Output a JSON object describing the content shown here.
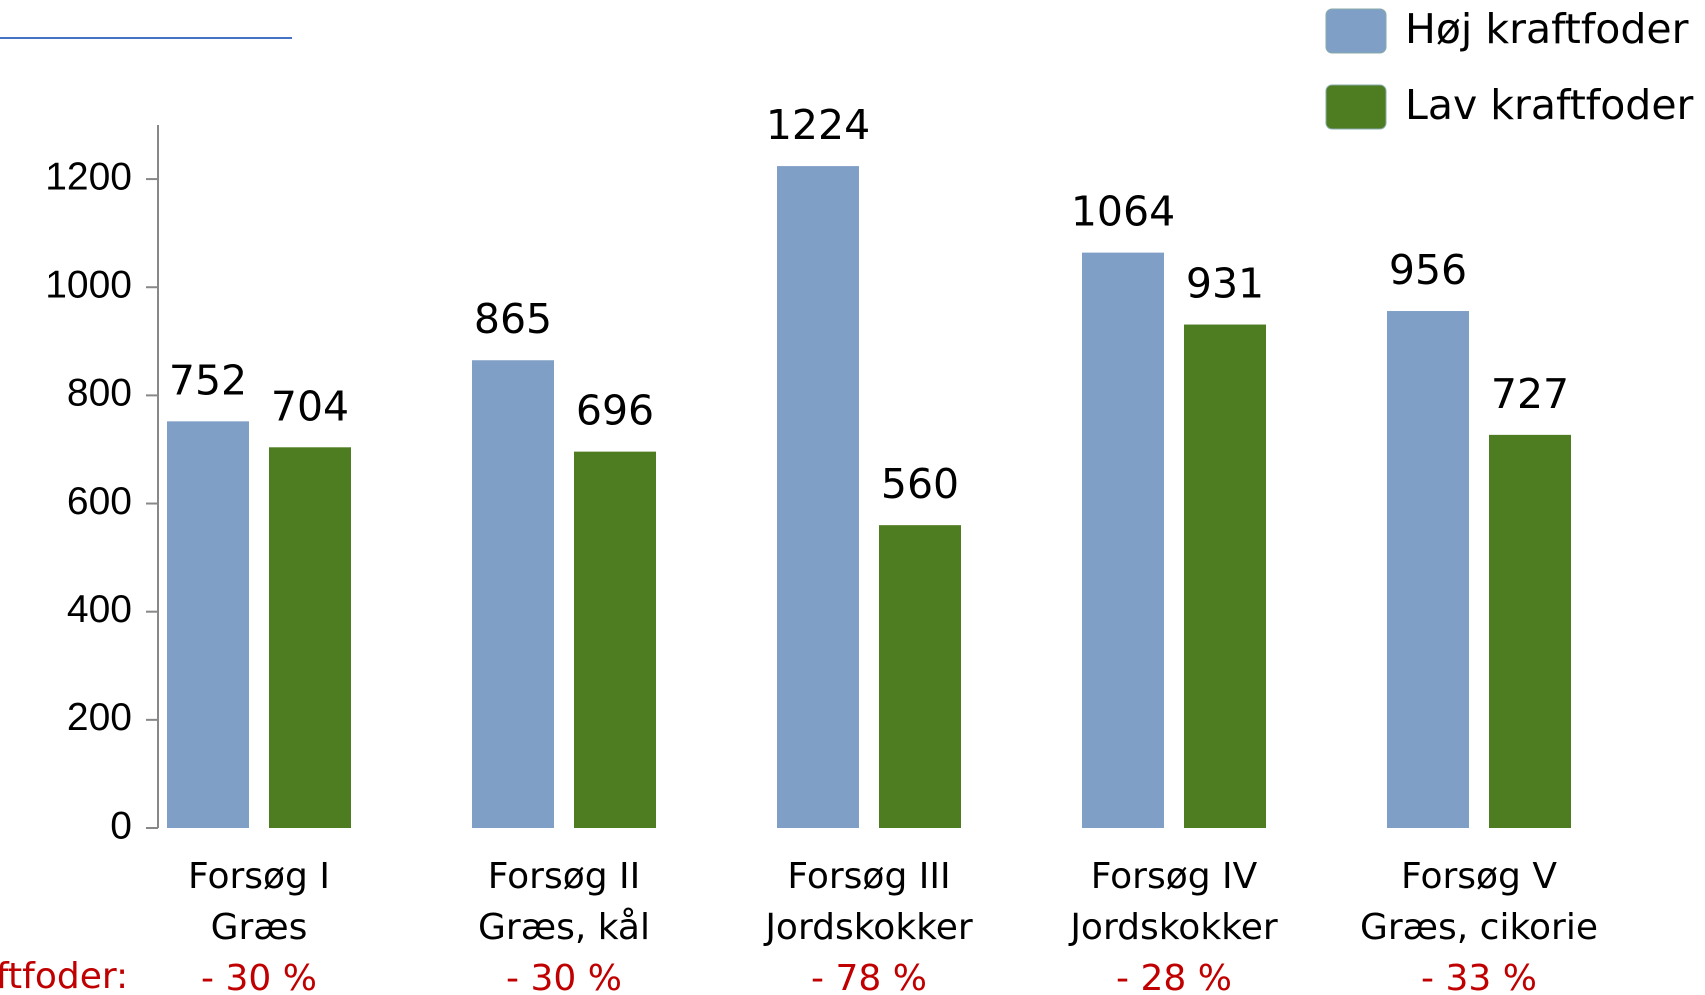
{
  "chart_data": {
    "type": "bar",
    "categories": [
      [
        "Forsøg I",
        "Græs"
      ],
      [
        "Forsøg II",
        "Græs, kål"
      ],
      [
        "Forsøg III",
        "Jordskokker"
      ],
      [
        "Forsøg IV",
        "Jordskokker"
      ],
      [
        "Forsøg V",
        "Græs, cikorie"
      ]
    ],
    "series": [
      {
        "name": "Høj kraftfoder",
        "color": "#7f9fc6",
        "values": [
          752,
          865,
          1224,
          1064,
          956
        ]
      },
      {
        "name": "Lav kraftfoder",
        "color": "#4e7c20",
        "values": [
          704,
          696,
          560,
          931,
          727
        ]
      }
    ],
    "ylim": [
      0,
      1300
    ],
    "yticks": [
      0,
      200,
      400,
      600,
      800,
      1000,
      1200
    ],
    "grid": false,
    "legend": "top-right",
    "annotation": {
      "label": "ftfoder:",
      "color": "#c00000",
      "values": [
        "- 30 %",
        "- 30 %",
        "- 78 %",
        "- 28 %",
        "- 33 %"
      ]
    }
  }
}
